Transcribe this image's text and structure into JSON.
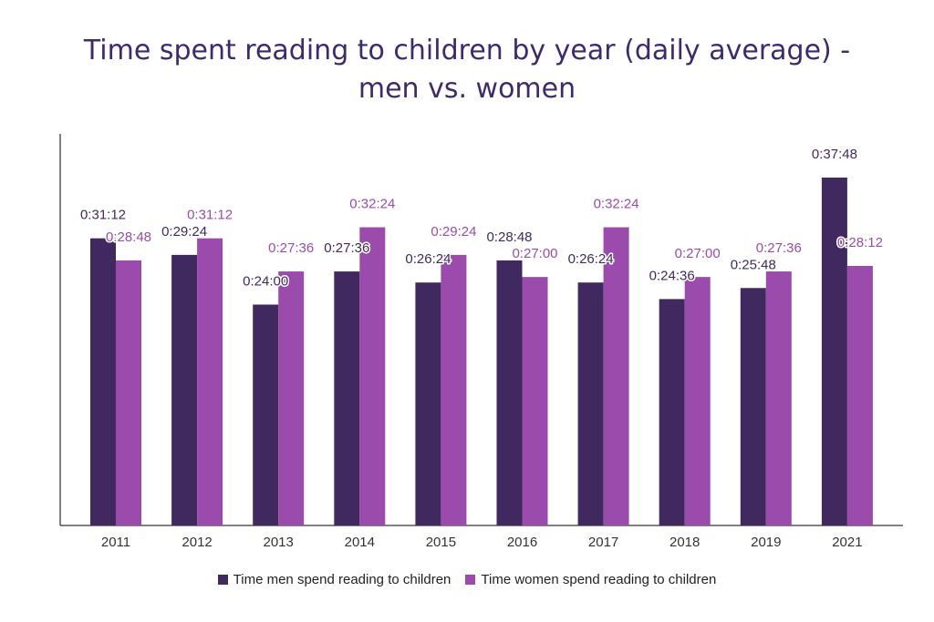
{
  "chart_data": {
    "type": "bar",
    "title_lines": [
      "Time spent reading to children by year (daily average) -",
      "men vs. women"
    ],
    "categories": [
      "2011",
      "2012",
      "2013",
      "2014",
      "2015",
      "2016",
      "2017",
      "2018",
      "2019",
      "2021"
    ],
    "ylim_seconds": [
      0,
      2268
    ],
    "grid": false,
    "legend_position": "bottom",
    "series": [
      {
        "name": "Time men spend reading to children",
        "color": "#40295f",
        "values_seconds": [
          1872,
          1764,
          1440,
          1656,
          1584,
          1728,
          1584,
          1476,
          1548,
          2268
        ],
        "labels": [
          "0:31:12",
          "0:29:24",
          "0:24:00",
          "0:27:36",
          "0:26:24",
          "0:28:48",
          "0:26:24",
          "0:24:36",
          "0:25:48",
          "0:37:48"
        ]
      },
      {
        "name": "Time women spend reading to children",
        "color": "#9b4bab",
        "values_seconds": [
          1728,
          1872,
          1656,
          1944,
          1764,
          1620,
          1944,
          1620,
          1656,
          1692
        ],
        "labels": [
          "0:28:48",
          "0:31:12",
          "0:27:36",
          "0:32:24",
          "0:29:24",
          "0:27:00",
          "0:32:24",
          "0:27:00",
          "0:27:36",
          "0:28:12"
        ]
      }
    ]
  }
}
